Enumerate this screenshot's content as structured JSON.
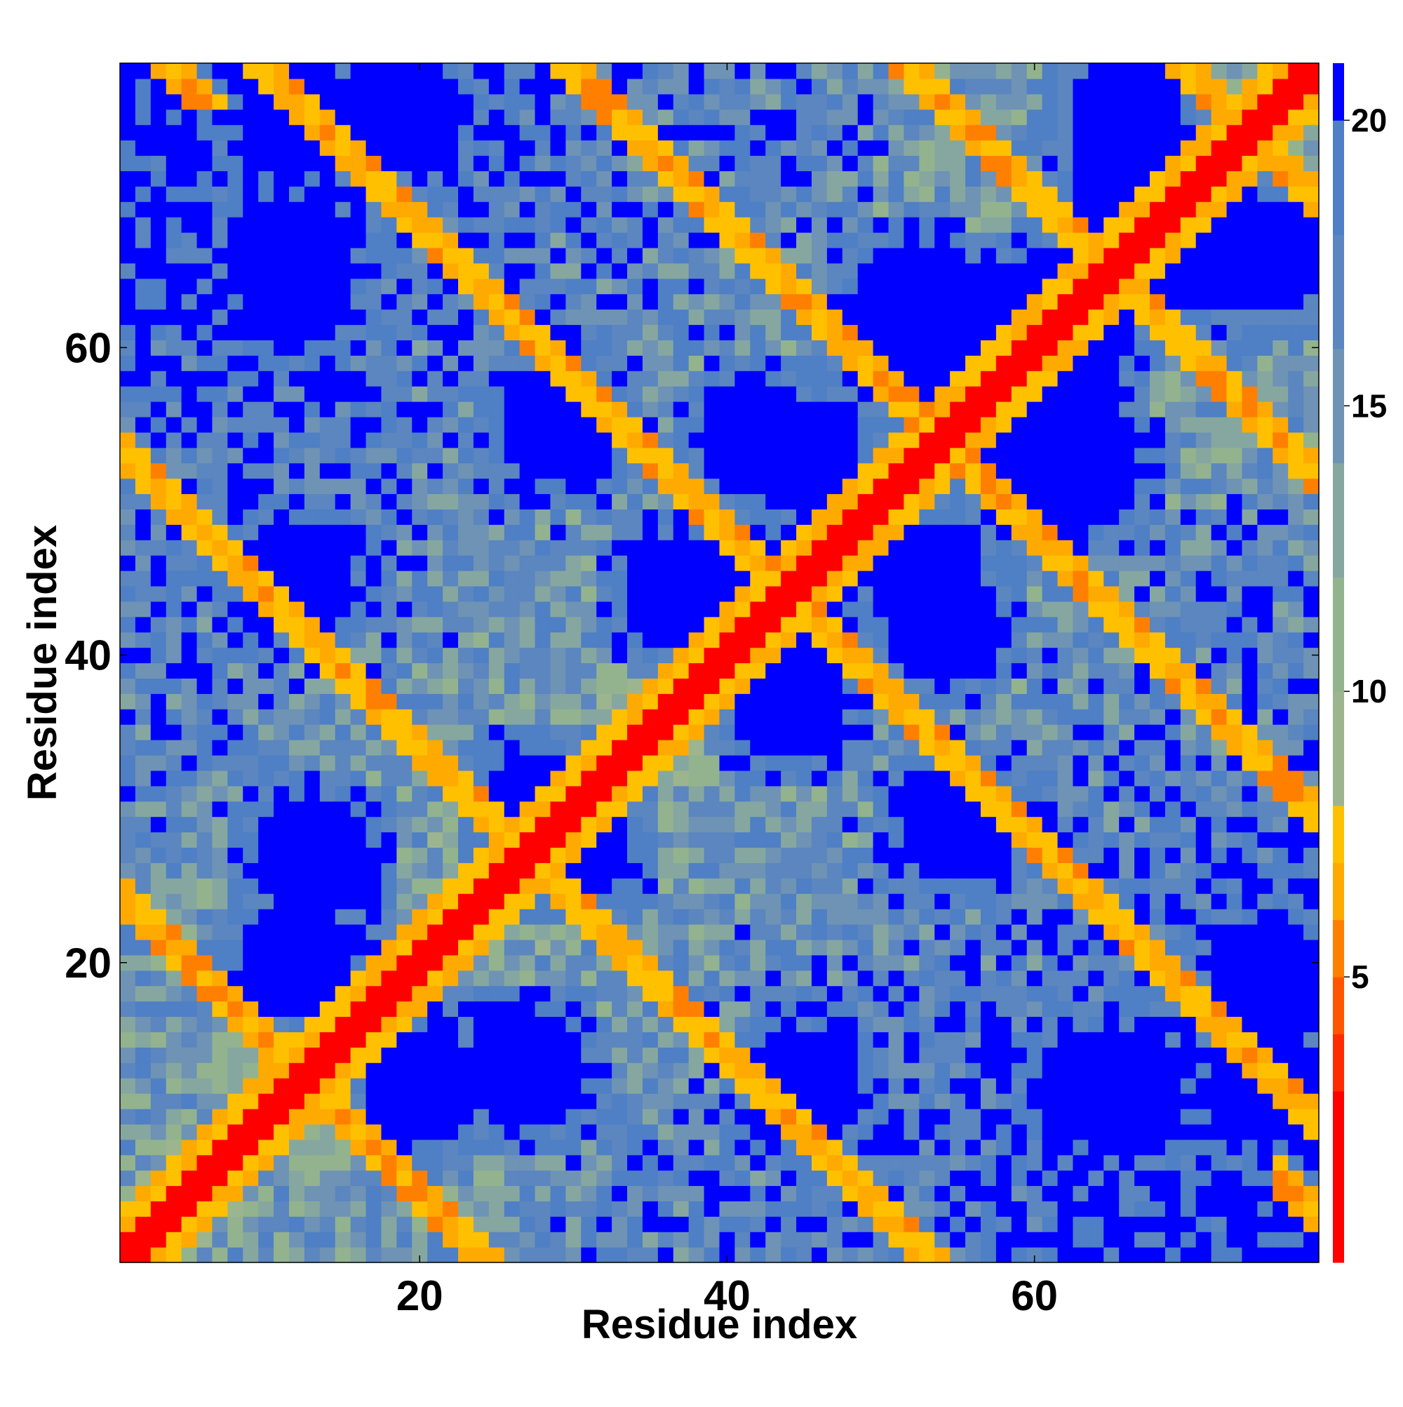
{
  "chart_data": {
    "type": "heatmap",
    "title": "",
    "xlabel": "Residue index",
    "ylabel": "Residue index",
    "n_residues": 78,
    "xlim": [
      1,
      78
    ],
    "ylim": [
      1,
      78
    ],
    "xticks": [
      20,
      40,
      60
    ],
    "yticks": [
      20,
      40,
      60
    ],
    "colorbar": {
      "ticks": [
        5,
        10,
        15,
        20
      ],
      "range": [
        0,
        21
      ],
      "bands": [
        {
          "max": 3,
          "color": "#ff0000"
        },
        {
          "max": 4,
          "color": "#ff2a00"
        },
        {
          "max": 5,
          "color": "#ff5500"
        },
        {
          "max": 6,
          "color": "#ff7f00"
        },
        {
          "max": 7,
          "color": "#ffaa00"
        },
        {
          "max": 8,
          "color": "#ffc000"
        },
        {
          "max": 10,
          "color": "#9cb58e"
        },
        {
          "max": 12,
          "color": "#93b38f"
        },
        {
          "max": 14,
          "color": "#86a7a0"
        },
        {
          "max": 16,
          "color": "#6f93b4"
        },
        {
          "max": 18,
          "color": "#5b86bf"
        },
        {
          "max": 20,
          "color": "#4f7fc4"
        },
        {
          "max": 21,
          "color": "#0000ff"
        }
      ]
    },
    "values_description": "Pairwise distance (Angstrom) between residues; symmetric matrix with short distances (red/orange) along the diagonal and anti-diagonal contact streaks, large distances (blue) elsewhere."
  }
}
